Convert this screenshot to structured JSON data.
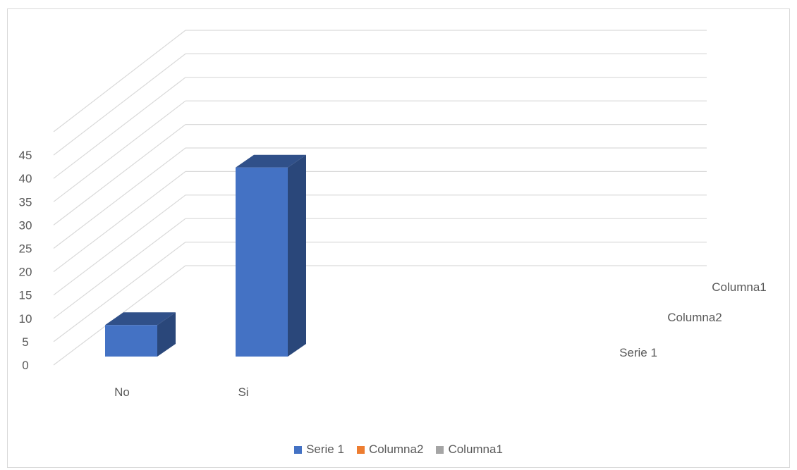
{
  "chart_data": {
    "type": "bar",
    "categories": [
      "No",
      "Si"
    ],
    "series": [
      {
        "name": "Serie 1",
        "values": [
          7,
          42
        ],
        "color": "#4472C4"
      },
      {
        "name": "Columna2",
        "values": [
          null,
          null
        ],
        "color": "#ED7D31"
      },
      {
        "name": "Columna1",
        "values": [
          null,
          null
        ],
        "color": "#A5A5A5"
      }
    ],
    "depth_axis_labels": [
      "Columna1",
      "Columna2",
      "Serie 1"
    ],
    "y_ticks": [
      "0",
      "5",
      "10",
      "15",
      "20",
      "25",
      "30",
      "35",
      "40",
      "45"
    ],
    "ylim": [
      0,
      45
    ],
    "grid": true,
    "legend_position": "bottom",
    "title": "",
    "xlabel": "",
    "ylabel": ""
  }
}
